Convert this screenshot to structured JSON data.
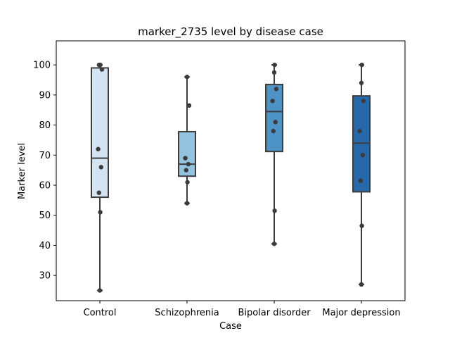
{
  "chart_data": {
    "type": "box",
    "title": "marker_2735 level by disease case",
    "xlabel": "Case",
    "ylabel": "Marker level",
    "categories": [
      "Control",
      "Schizophrenia",
      "Bipolar disorder",
      "Major depression"
    ],
    "ylim": [
      21.6,
      108.0
    ],
    "yticks": [
      30,
      40,
      50,
      60,
      70,
      80,
      90,
      100
    ],
    "grid": false,
    "box_colors": [
      "#d3e3f2",
      "#94c3df",
      "#4d93c6",
      "#2768ab"
    ],
    "boxes": [
      {
        "category": "Control",
        "whisker_low": 25,
        "q1": 56,
        "median": 69,
        "q3": 99,
        "whisker_high": 100,
        "points": [
          25,
          51,
          57.5,
          66,
          72,
          98.5,
          100,
          100,
          100
        ]
      },
      {
        "category": "Schizophrenia",
        "whisker_low": 54,
        "q1": 63,
        "median": 67,
        "q3": 77.8,
        "whisker_high": 96,
        "points": [
          54,
          61,
          65,
          67,
          69,
          86.5,
          96
        ]
      },
      {
        "category": "Bipolar disorder",
        "whisker_low": 40.5,
        "q1": 71.2,
        "median": 84.5,
        "q3": 93.5,
        "whisker_high": 100,
        "points": [
          40.5,
          51.5,
          78,
          81,
          88,
          92,
          97.5,
          100
        ]
      },
      {
        "category": "Major depression",
        "whisker_low": 27,
        "q1": 57.8,
        "median": 74,
        "q3": 89.7,
        "whisker_high": 100,
        "points": [
          27,
          46.5,
          61.5,
          70,
          78,
          88,
          94,
          100
        ]
      }
    ]
  }
}
